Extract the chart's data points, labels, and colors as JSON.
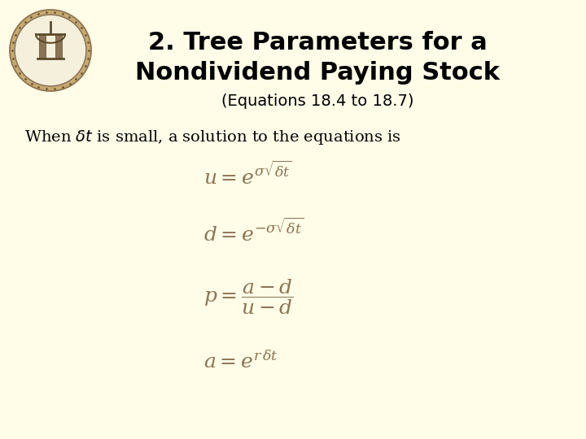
{
  "background_color": "#FFFDE7",
  "title_line1": "2. Tree Parameters for a",
  "title_line2": "Nondividend Paying Stock",
  "subtitle": "(Equations 18.4 to 18.7)",
  "body_text": "When $\\delta t$ is small, a solution to the equations is",
  "eq1": "$u = e^{\\sigma\\sqrt{\\delta t}}$",
  "eq2": "$d = e^{-\\sigma\\sqrt{\\delta t}}$",
  "eq3": "$p = \\dfrac{a - d}{u - d}$",
  "eq4": "$a = e^{r\\,\\delta t}$",
  "title_fontsize": 22,
  "subtitle_fontsize": 14,
  "body_fontsize": 14,
  "eq_fontsize": 18,
  "title_color": "#000000",
  "subtitle_color": "#000000",
  "body_color": "#000000",
  "eq_color": "#8B7355"
}
